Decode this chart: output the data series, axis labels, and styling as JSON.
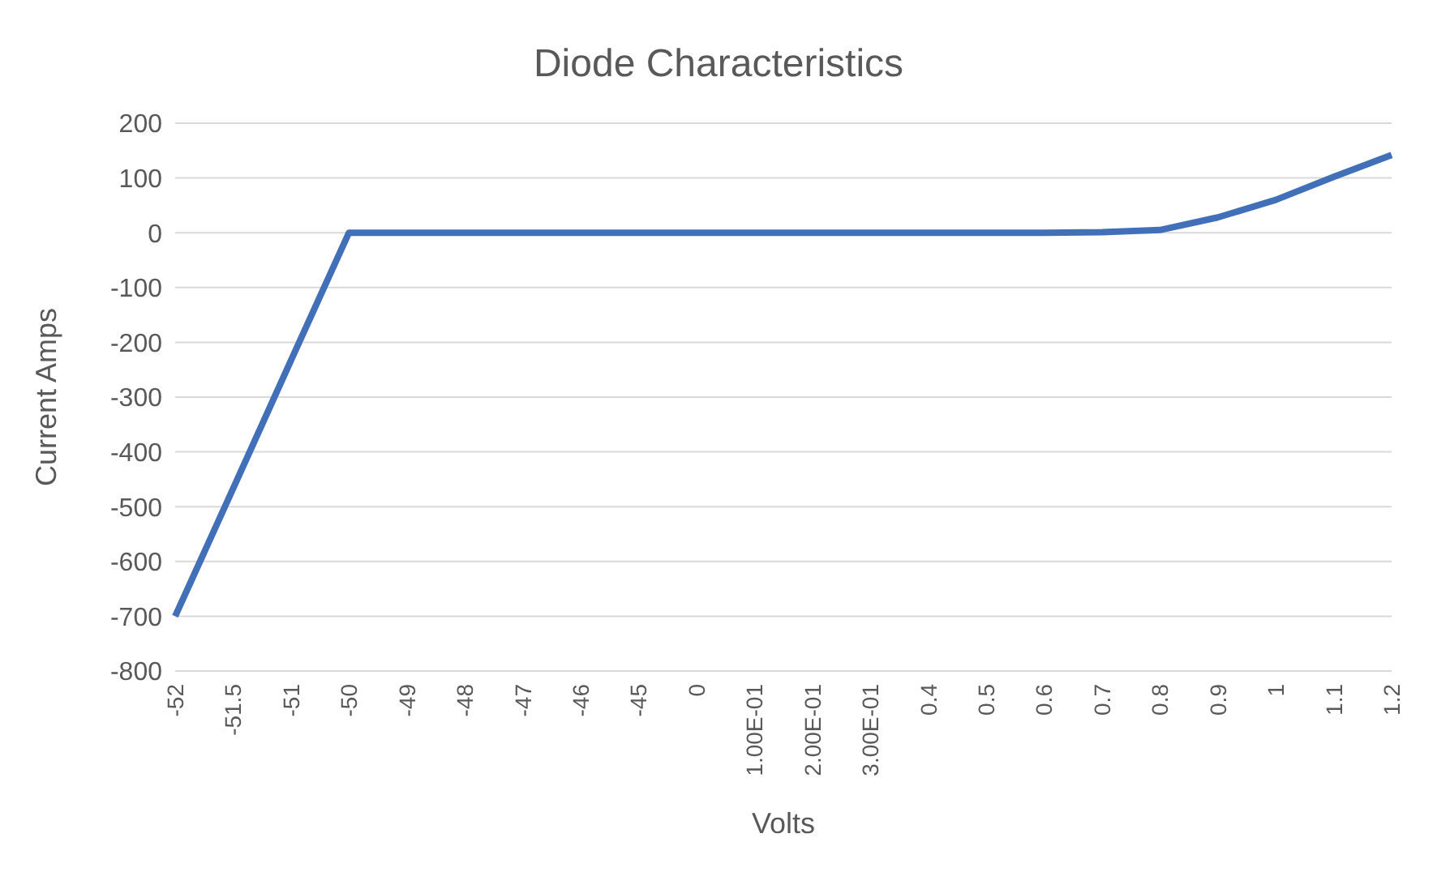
{
  "chart_data": {
    "type": "line",
    "title": "Diode Characteristics",
    "xlabel": "Volts",
    "ylabel": "Current Amps",
    "categories": [
      "-52",
      "-51.5",
      "-51",
      "-50",
      "-49",
      "-48",
      "-47",
      "-46",
      "-45",
      "0",
      "1.00E-01",
      "2.00E-01",
      "3.00E-01",
      "0.4",
      "0.5",
      "0.6",
      "0.7",
      "0.8",
      "0.9",
      "1",
      "1.1",
      "1.2"
    ],
    "series": [
      {
        "color": "#4170b8",
        "values": [
          -700,
          -467,
          -233,
          0,
          0,
          0,
          0,
          0,
          0,
          0,
          0,
          0,
          0,
          0,
          0,
          0,
          1,
          5,
          28,
          60,
          102,
          142
        ]
      }
    ],
    "ylim": [
      -800,
      200
    ],
    "yticks": [
      -800,
      -700,
      -600,
      -500,
      -400,
      -300,
      -200,
      -100,
      0,
      100,
      200
    ],
    "grid": "y",
    "marker": "none",
    "line_style": "solid"
  }
}
